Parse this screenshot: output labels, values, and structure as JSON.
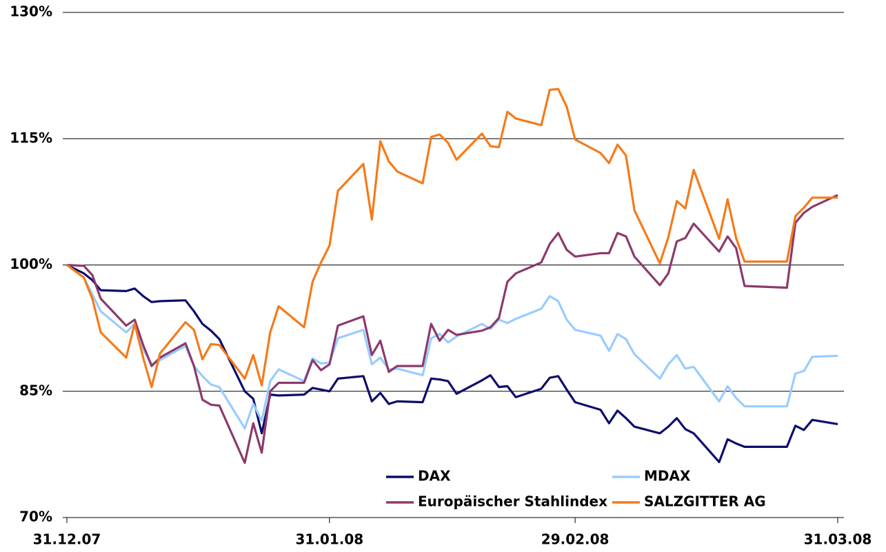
{
  "chart_data": {
    "type": "line",
    "x": [
      "31.12.07",
      "02.01.08",
      "03.01.08",
      "04.01.08",
      "07.01.08",
      "08.01.08",
      "09.01.08",
      "10.01.08",
      "11.01.08",
      "14.01.08",
      "15.01.08",
      "16.01.08",
      "17.01.08",
      "18.01.08",
      "21.01.08",
      "22.01.08",
      "23.01.08",
      "24.01.08",
      "25.01.08",
      "28.01.08",
      "29.01.08",
      "30.01.08",
      "31.01.08",
      "01.02.08",
      "04.02.08",
      "05.02.08",
      "06.02.08",
      "07.02.08",
      "08.02.08",
      "11.02.08",
      "12.02.08",
      "13.02.08",
      "14.02.08",
      "15.02.08",
      "18.02.08",
      "19.02.08",
      "20.02.08",
      "21.02.08",
      "22.02.08",
      "25.02.08",
      "26.02.08",
      "27.02.08",
      "28.02.08",
      "29.02.08",
      "03.03.08",
      "04.03.08",
      "05.03.08",
      "06.03.08",
      "07.03.08",
      "10.03.08",
      "11.03.08",
      "12.03.08",
      "13.03.08",
      "14.03.08",
      "17.03.08",
      "18.03.08",
      "19.03.08",
      "20.03.08",
      "25.03.08",
      "26.03.08",
      "27.03.08",
      "28.03.08",
      "31.03.08"
    ],
    "series": [
      {
        "name": "DAX",
        "color": "#0d0d6b",
        "values": [
          100,
          99,
          98.2,
          97,
          96.9,
          97.2,
          96.3,
          95.6,
          95.7,
          95.8,
          94.5,
          93,
          92.2,
          91.2,
          85,
          84.1,
          80,
          84.6,
          84.5,
          84.6,
          85.4,
          85.2,
          85,
          86.5,
          86.8,
          83.8,
          84.8,
          83.5,
          83.8,
          83.7,
          86.5,
          86.4,
          86.2,
          84.7,
          86.3,
          86.9,
          85.5,
          85.6,
          84.3,
          85.3,
          86.6,
          86.8,
          85.2,
          83.7,
          82.8,
          81.2,
          82.7,
          81.8,
          80.8,
          80,
          80.8,
          81.8,
          80.5,
          80,
          76.6,
          79.3,
          78.8,
          78.4,
          78.4,
          80.9,
          80.4,
          81.6,
          81.1
        ]
      },
      {
        "name": "MDAX",
        "color": "#99ccff",
        "values": [
          100,
          98.5,
          96.5,
          94.5,
          92,
          93,
          90,
          88.2,
          88.7,
          90.4,
          88,
          86.8,
          85.8,
          85.5,
          80.6,
          83.5,
          81.5,
          86.2,
          87.6,
          86.2,
          88.9,
          88.3,
          88.4,
          91.3,
          92.3,
          88.2,
          89,
          87.6,
          87.7,
          86.9,
          91.3,
          91.8,
          90.8,
          91.5,
          93,
          92.4,
          93.5,
          93.1,
          93.6,
          94.8,
          96.3,
          95.7,
          93.5,
          92.3,
          91.6,
          89.8,
          91.8,
          91.2,
          89.4,
          86.5,
          88.2,
          89.3,
          87.7,
          87.9,
          83.8,
          85.6,
          84.2,
          83.2,
          83.2,
          87.1,
          87.4,
          89.1,
          89.2
        ]
      },
      {
        "name": "Europäischer Stahlindex",
        "color": "#8b3a6b",
        "values": [
          100,
          99.9,
          98.8,
          96,
          92.8,
          93.5,
          90.5,
          88,
          89,
          90.7,
          88,
          84,
          83.4,
          83.3,
          76.5,
          81.2,
          77.7,
          85,
          86,
          86,
          88.7,
          87.5,
          88.2,
          92.8,
          93.9,
          89.3,
          91,
          87.3,
          88,
          88,
          93,
          91,
          92.3,
          91.7,
          92.2,
          92.6,
          93.7,
          98,
          99,
          100.3,
          102.5,
          103.8,
          101.8,
          101,
          101.4,
          101.4,
          103.8,
          103.4,
          101,
          97.6,
          99,
          102.8,
          103.2,
          104.9,
          101.6,
          103.4,
          102,
          97.5,
          97.3,
          105,
          106.2,
          106.9,
          108.3
        ]
      },
      {
        "name": "SALZGITTER AG",
        "color": "#f57a1a",
        "values": [
          100,
          98.5,
          96,
          92,
          89,
          93,
          89,
          85.5,
          89.5,
          93.2,
          92.3,
          88.8,
          90.6,
          90.5,
          86.5,
          89.3,
          85.7,
          92,
          95.1,
          92.6,
          98,
          100.3,
          102.3,
          108.8,
          112,
          105.4,
          114.7,
          112.3,
          111.1,
          109.7,
          115.2,
          115.5,
          114.5,
          112.5,
          115.6,
          114.1,
          114,
          118.2,
          117.4,
          116.6,
          120.8,
          120.9,
          118.8,
          114.9,
          113.3,
          112.1,
          114.3,
          113,
          106.5,
          100.2,
          103.3,
          107.6,
          106.7,
          111.3,
          103.1,
          107.8,
          103.2,
          100.4,
          100.4,
          105.8,
          106.8,
          108,
          108
        ]
      }
    ],
    "xlim": [
      "31.12.07",
      "31.03.08"
    ],
    "xticks": [
      "31.12.07",
      "31.01.08",
      "29.02.08",
      "31.03.08"
    ],
    "ylim": [
      70,
      130
    ],
    "yticks": [
      {
        "value": 70,
        "label": "70%"
      },
      {
        "value": 85,
        "label": "85%"
      },
      {
        "value": 100,
        "label": "100%"
      },
      {
        "value": 115,
        "label": "115%"
      },
      {
        "value": 130,
        "label": "130%"
      }
    ],
    "grid": true,
    "legend": "bottom"
  }
}
